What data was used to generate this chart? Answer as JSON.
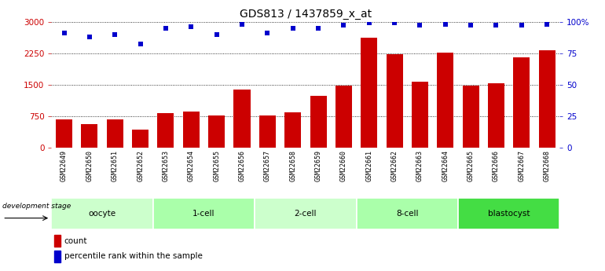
{
  "title": "GDS813 / 1437859_x_at",
  "samples": [
    "GSM22649",
    "GSM22650",
    "GSM22651",
    "GSM22652",
    "GSM22653",
    "GSM22654",
    "GSM22655",
    "GSM22656",
    "GSM22657",
    "GSM22658",
    "GSM22659",
    "GSM22660",
    "GSM22661",
    "GSM22662",
    "GSM22663",
    "GSM22664",
    "GSM22665",
    "GSM22666",
    "GSM22667",
    "GSM22668"
  ],
  "counts": [
    680,
    570,
    670,
    430,
    820,
    870,
    760,
    1380,
    760,
    840,
    1240,
    1470,
    2620,
    2230,
    1580,
    2270,
    1470,
    1530,
    2160,
    2320
  ],
  "percentile": [
    91,
    88,
    90,
    82,
    95,
    96,
    90,
    98,
    91,
    95,
    95,
    97,
    99,
    99,
    97,
    98,
    97,
    97,
    97,
    98
  ],
  "groups": [
    {
      "label": "oocyte",
      "start": 0,
      "end": 4,
      "color": "#ccffcc"
    },
    {
      "label": "1-cell",
      "start": 4,
      "end": 8,
      "color": "#aaffaa"
    },
    {
      "label": "2-cell",
      "start": 8,
      "end": 12,
      "color": "#ccffcc"
    },
    {
      "label": "8-cell",
      "start": 12,
      "end": 16,
      "color": "#aaffaa"
    },
    {
      "label": "blastocyst",
      "start": 16,
      "end": 20,
      "color": "#44dd44"
    }
  ],
  "ylim_left": [
    0,
    3000
  ],
  "ylim_right": [
    0,
    100
  ],
  "yticks_left": [
    0,
    750,
    1500,
    2250,
    3000
  ],
  "ytick_labels_left": [
    "0",
    "750",
    "1500",
    "2250",
    "3000"
  ],
  "yticks_right": [
    0,
    25,
    50,
    75,
    100
  ],
  "ytick_labels_right": [
    "0",
    "25",
    "50",
    "75",
    "100%"
  ],
  "bar_color": "#cc0000",
  "dot_color": "#0000cc",
  "background_color": "#ffffff",
  "tick_area_color": "#c8c8c8",
  "group_border_color": "#ffffff",
  "legend_count_color": "#cc0000",
  "legend_dot_color": "#0000cc",
  "dev_stage_label": "development stage",
  "legend_count_label": "count",
  "legend_percentile_label": "percentile rank within the sample",
  "grid_color": "#000000",
  "grid_linestyle": ":",
  "grid_linewidth": 0.6
}
